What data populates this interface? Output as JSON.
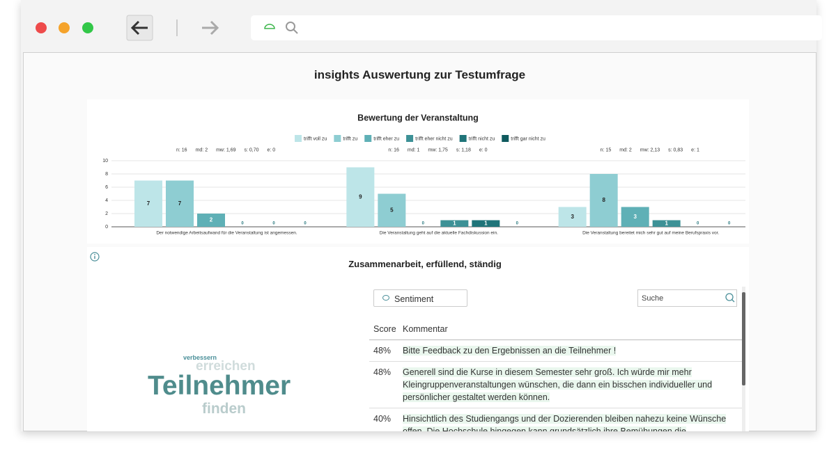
{
  "page_title": "insights Auswertung zur Testumfrage",
  "chart_data": {
    "type": "bar",
    "title": "Bewertung der Veranstaltung",
    "categories": [
      "Der notwendige Arbeitsaufwand für die Veranstaltung ist angemessen.",
      "Die Veranstaltung geht auf die aktuelle Fachdiskussion ein.",
      "Die Veranstaltung bereitet mich sehr gut auf meine Berufspraxis vor."
    ],
    "stats": [
      [
        "n: 16",
        "md: 2",
        "mw: 1,69",
        "s: 0,70",
        "e: 0"
      ],
      [
        "n: 16",
        "md: 1",
        "mw: 1,75",
        "s: 1,18",
        "e: 0"
      ],
      [
        "n: 15",
        "md: 2",
        "mw: 2,13",
        "s: 0,83",
        "e: 1"
      ]
    ],
    "series": [
      {
        "name": "trifft voll zu",
        "color": "#bde5e8",
        "values": [
          7,
          9,
          3
        ]
      },
      {
        "name": "trifft zu",
        "color": "#8ecdd2",
        "values": [
          7,
          5,
          8
        ]
      },
      {
        "name": "trifft eher zu",
        "color": "#5fb0b6",
        "values": [
          2,
          0,
          3
        ]
      },
      {
        "name": "trifft eher nicht zu",
        "color": "#3d9196",
        "values": [
          0,
          1,
          1
        ]
      },
      {
        "name": "trifft nicht zu",
        "color": "#1f7479",
        "values": [
          0,
          1,
          0
        ]
      },
      {
        "name": "trifft gar nicht zu",
        "color": "#0f5a5e",
        "values": [
          0,
          0,
          0
        ]
      }
    ],
    "ylim": [
      0,
      10
    ],
    "yticks": [
      0,
      2,
      4,
      6,
      8,
      10
    ],
    "grid": true
  },
  "comments": {
    "title": "Zusammenarbeit, erfüllend, ständig",
    "words": [
      "verbessern",
      "erreichen",
      "Teilnehmer",
      "finden"
    ],
    "sentiment_button": "Sentiment",
    "search_placeholder": "Suche",
    "table": {
      "header": [
        "Score",
        "Kommentar"
      ],
      "rows": [
        [
          "48%",
          "Bitte Feedback zu den Ergebnissen an die Teilnehmer !"
        ],
        [
          "48%",
          "Generell sind die Kurse in diesem Semester sehr groß. Ich würde mir mehr Kleingruppenveranstaltungen wünschen, die dann ein bisschen individueller und persönlicher gestaltet werden können."
        ],
        [
          "40%",
          "Hinsichtlich des Studiengangs und der Dozierenden bleiben nahezu keine Wünsche offen. Die Hochschule hingegen kann grundsätzlich ihre Bemühungen die Studierenden zu"
        ]
      ]
    }
  }
}
